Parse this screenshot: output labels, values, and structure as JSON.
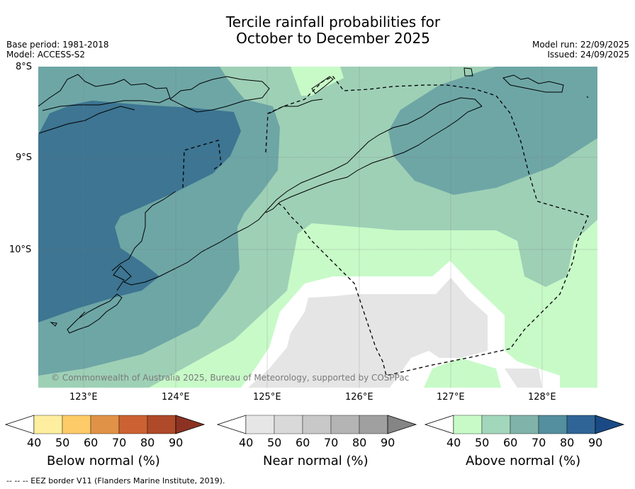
{
  "header": {
    "title_line1": "Tercile rainfall probabilities for",
    "title_line2": "October to December 2025",
    "base_period": "Base period: 1981-2018",
    "model": "Model: ACCESS-S2",
    "model_run": "Model run: 22/09/2025",
    "issued": "Issued: 24/09/2025"
  },
  "map": {
    "lat_labels": [
      "8°S",
      "9°S",
      "10°S"
    ],
    "lon_labels": [
      "123°E",
      "124°E",
      "125°E",
      "126°E",
      "127°E",
      "128°E"
    ],
    "copyright": "© Commonwealth of Australia 2025, Bureau of Meteorology, supported by COSPPac",
    "colors": {
      "above_40": "#c8fac8",
      "above_50": "#9ed0b6",
      "above_60": "#6ea6a6",
      "above_70": "#3d7592",
      "near_40": "#e5e5e5",
      "sea_white": "#ffffff"
    }
  },
  "legends": {
    "below": {
      "title": "Below normal (%)",
      "ticks": [
        "40",
        "50",
        "60",
        "70",
        "80",
        "90"
      ],
      "colors": [
        "#ffffff",
        "#fdeea0",
        "#fdcb68",
        "#e09347",
        "#cc6233",
        "#ae4a29",
        "#8c3223"
      ]
    },
    "near": {
      "title": "Near normal (%)",
      "ticks": [
        "40",
        "50",
        "60",
        "70",
        "80",
        "90"
      ],
      "colors": [
        "#ffffff",
        "#e6e6e6",
        "#d9d9d9",
        "#c8c8c8",
        "#b4b4b4",
        "#a0a0a0",
        "#858585"
      ]
    },
    "above": {
      "title": "Above normal (%)",
      "ticks": [
        "40",
        "50",
        "60",
        "70",
        "80",
        "90"
      ],
      "colors": [
        "#ffffff",
        "#c8fac8",
        "#a3d7bb",
        "#80b3aa",
        "#538f9e",
        "#2f6596",
        "#1a4a85"
      ]
    }
  },
  "footnote": "--  --  -- EEZ border V11 (Flanders Marine Institute, 2019)."
}
